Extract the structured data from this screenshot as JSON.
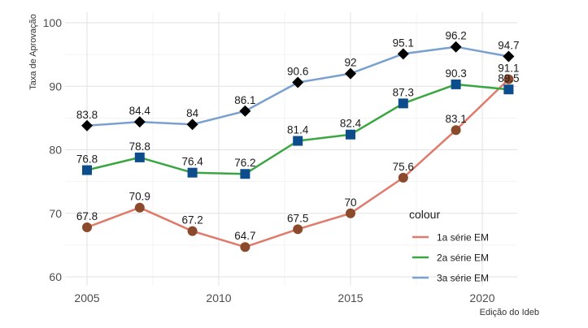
{
  "chart_data": {
    "type": "line",
    "xlabel": "Edição do Ideb",
    "ylabel": "Taxa de Aprovação",
    "xlim": [
      2004.5,
      2021.5
    ],
    "ylim": [
      59,
      101
    ],
    "x_ticks": [
      2005,
      2010,
      2015,
      2020
    ],
    "y_ticks": [
      60,
      70,
      80,
      90,
      100
    ],
    "grid": true,
    "legend": {
      "title": "colour",
      "position": "bottom-right"
    },
    "x": [
      2005,
      2007,
      2009,
      2011,
      2013,
      2015,
      2017,
      2019,
      2021
    ],
    "series": [
      {
        "name": "1a série EM",
        "line_color": "#e07a6a",
        "marker": "circle",
        "marker_color": "#8b4a2b",
        "values": [
          67.8,
          70.9,
          67.2,
          64.7,
          67.5,
          70,
          75.6,
          83.1,
          91.1
        ]
      },
      {
        "name": "2a série EM",
        "line_color": "#3aa642",
        "marker": "square",
        "marker_color": "#0e4d8c",
        "values": [
          76.8,
          78.8,
          76.4,
          76.2,
          81.4,
          82.4,
          87.3,
          90.3,
          89.5
        ]
      },
      {
        "name": "3a série EM",
        "line_color": "#7aa0d0",
        "marker": "diamond",
        "marker_color": "#000000",
        "values": [
          83.8,
          84.4,
          84,
          86.1,
          90.6,
          92,
          95.1,
          96.2,
          94.7
        ]
      }
    ]
  }
}
